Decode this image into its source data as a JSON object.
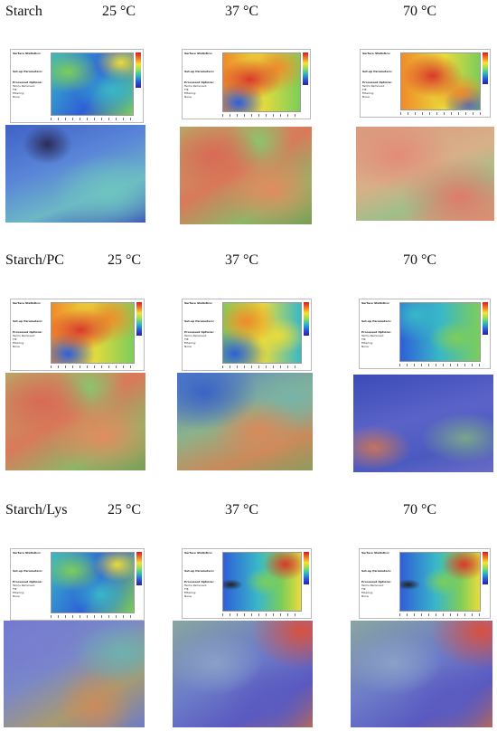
{
  "rows": [
    {
      "material": "Starch",
      "temps": [
        "25 °C",
        "37 °C",
        "70 °C"
      ]
    },
    {
      "material": "Starch/PC",
      "temps": [
        "25 °C",
        "37 °C",
        "70 °C"
      ]
    },
    {
      "material": "Starch/Lys",
      "temps": [
        "25 °C",
        "37 °C",
        "70 °C"
      ]
    }
  ],
  "panel_text": {
    "surface_statistics": "Surface Statistics:",
    "setup_parameters": "Set-up Parameters:",
    "processed_options": "Processed Options:",
    "terms_removed": "Terms Removed:",
    "tilt": "Tilt",
    "filtering": "Filtering:",
    "none": "None"
  },
  "colors": {
    "red": "#d9392c",
    "orange": "#f08a2a",
    "yellow": "#e9dc3a",
    "green": "#7ccd5a",
    "cyan": "#38b8c8",
    "blue": "#2e5fd8",
    "violet": "#5a4cc8"
  }
}
